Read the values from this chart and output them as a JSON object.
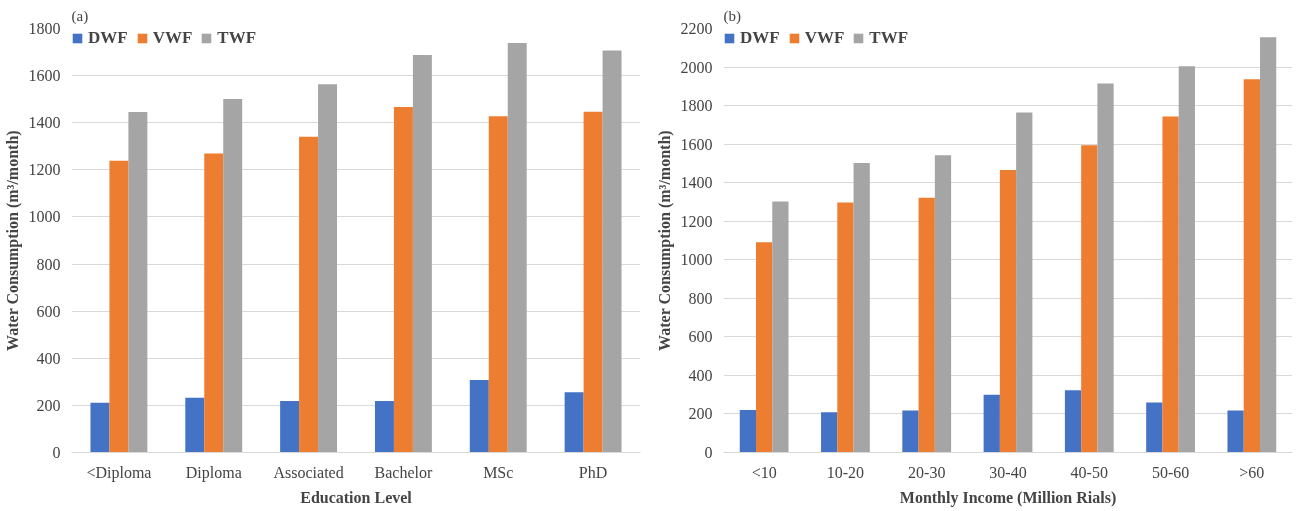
{
  "chart_data": [
    {
      "type": "bar",
      "title": "(a)",
      "xlabel": "Education Level",
      "ylabel": "Water Consumption (m³/month)",
      "categories": [
        "<Diploma",
        "Diploma",
        "Associated",
        "Bachelor",
        "MSc",
        "PhD"
      ],
      "series": [
        {
          "name": "DWF",
          "color": "#4472c4",
          "values": [
            211,
            232,
            219,
            219,
            308,
            256
          ]
        },
        {
          "name": "VWF",
          "color": "#ed7d31",
          "values": [
            1239,
            1269,
            1340,
            1467,
            1428,
            1447
          ]
        },
        {
          "name": "TWF",
          "color": "#a5a5a5",
          "values": [
            1445,
            1501,
            1563,
            1688,
            1738,
            1707
          ]
        }
      ],
      "ylim": [
        0,
        1800
      ],
      "yticks": [
        0,
        200,
        400,
        600,
        800,
        1000,
        1200,
        1400,
        1600,
        1800
      ],
      "grid": "y",
      "legend": "top left"
    },
    {
      "type": "bar",
      "title": "(b)",
      "xlabel": "Monthly Income (Million Rials)",
      "ylabel": "Water Consumption (m³/month)",
      "categories": [
        "<10",
        "10-20",
        "20-30",
        "30-40",
        "40-50",
        "50-60",
        ">60"
      ],
      "series": [
        {
          "name": "DWF",
          "color": "#4472c4",
          "values": [
            220,
            209,
            218,
            299,
            323,
            260,
            218
          ]
        },
        {
          "name": "VWF",
          "color": "#ed7d31",
          "values": [
            1091,
            1297,
            1322,
            1466,
            1594,
            1744,
            1937
          ]
        },
        {
          "name": "TWF",
          "color": "#a5a5a5",
          "values": [
            1302,
            1502,
            1542,
            1764,
            1915,
            2004,
            2155
          ]
        }
      ],
      "ylim": [
        0,
        2200
      ],
      "yticks": [
        0,
        200,
        400,
        600,
        800,
        1000,
        1200,
        1400,
        1600,
        1800,
        2000,
        2200
      ],
      "grid": "y",
      "legend": "top left"
    }
  ]
}
